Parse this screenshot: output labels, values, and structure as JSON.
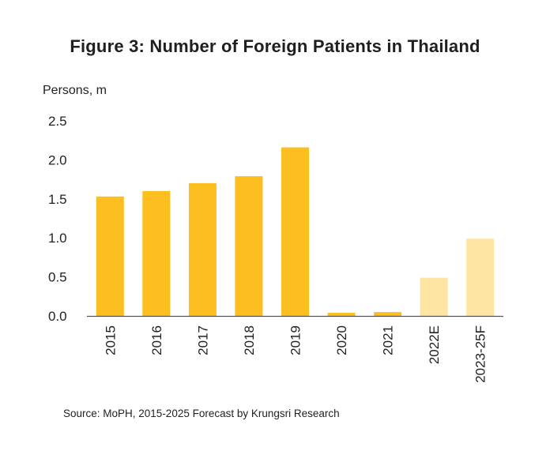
{
  "chart_data": {
    "type": "bar",
    "title": "Figure 3: Number of Foreign Patients in Thailand",
    "ylabel": "Persons, m",
    "xlabel": "",
    "categories": [
      "2015",
      "2016",
      "2017",
      "2018",
      "2019",
      "2020",
      "2021",
      "2022E",
      "2023-25F"
    ],
    "values": [
      1.53,
      1.6,
      1.7,
      1.79,
      2.16,
      0.04,
      0.05,
      0.49,
      0.99
    ],
    "forecast": [
      false,
      false,
      false,
      false,
      false,
      false,
      false,
      true,
      true
    ],
    "ylim": [
      0,
      2.5
    ],
    "yticks": [
      "0.0",
      "0.5",
      "1.0",
      "1.5",
      "2.0",
      "2.5"
    ],
    "grid": false,
    "colors": {
      "actual": "#FDBE20",
      "forecast": "#FEE5A4",
      "axis": "#555555"
    }
  },
  "source": "Source: MoPH,   2015-2025 Forecast by Krungsri Research"
}
